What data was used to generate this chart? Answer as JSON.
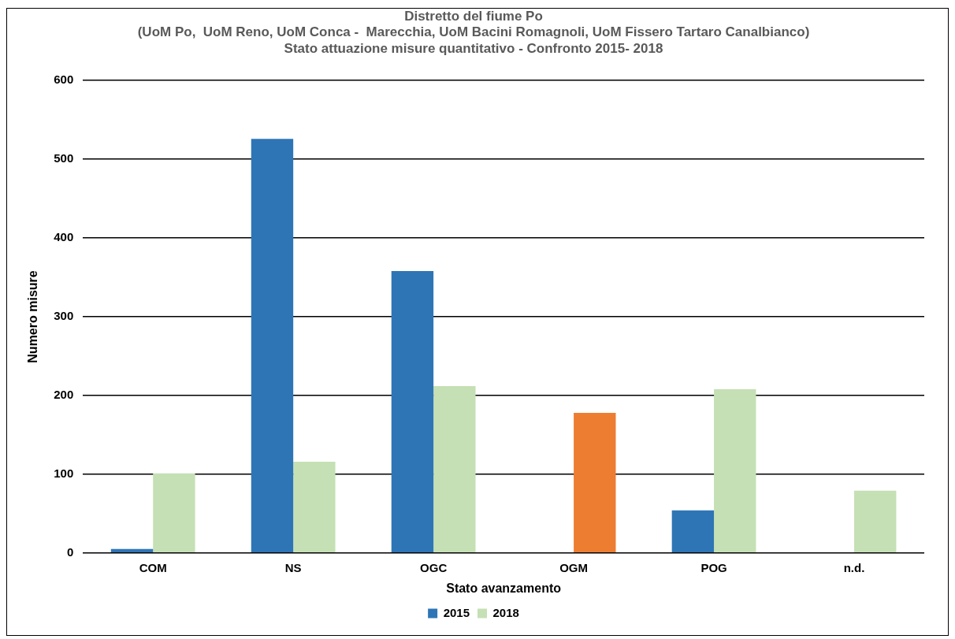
{
  "chart_data": {
    "type": "bar",
    "title": "Distretto del fiume Po\n(UoM Po,  UoM Reno, UoM Conca -  Marecchia, UoM Bacini Romagnoli, UoM Fissero Tartaro Canalbianco)\nStato attuazione misure quantitativo - Confronto 2015- 2018",
    "xlabel": "Stato avanzamento",
    "ylabel": "Numero misure",
    "categories": [
      "COM",
      "NS",
      "OGC",
      "OGM",
      "POG",
      "n.d."
    ],
    "series": [
      {
        "name": "2015",
        "color": "#2e75b6",
        "values": [
          5,
          526,
          358,
          null,
          54,
          null
        ]
      },
      {
        "name": "2018",
        "color": "#c5e0b4",
        "colors": [
          "#c5e0b4",
          "#c5e0b4",
          "#c5e0b4",
          "#ed7d31",
          "#c5e0b4",
          "#c5e0b4"
        ],
        "values": [
          101,
          116,
          212,
          178,
          208,
          79
        ]
      }
    ],
    "ylim": [
      0,
      600
    ],
    "yticks": [
      0,
      100,
      200,
      300,
      400,
      500,
      600
    ],
    "grid": "y",
    "legend": "bottom"
  }
}
